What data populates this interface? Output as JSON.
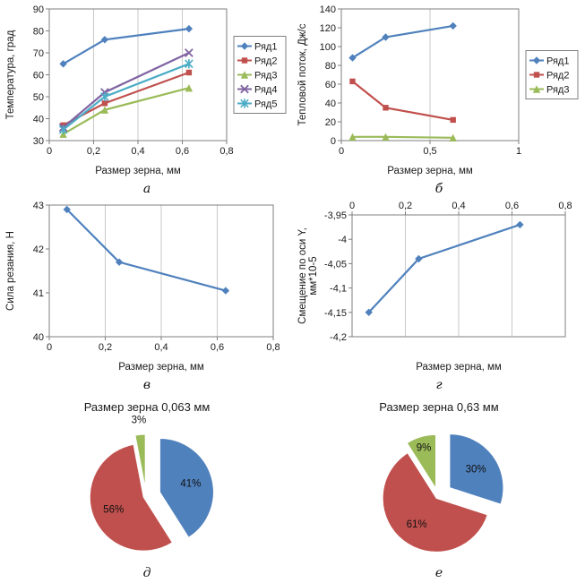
{
  "panels": [
    {
      "id": "a",
      "letter": "а"
    },
    {
      "id": "b",
      "letter": "б"
    },
    {
      "id": "v",
      "letter": "в"
    },
    {
      "id": "g",
      "letter": "г"
    },
    {
      "id": "d",
      "letter": "д",
      "title": "Размер зерна 0,063 мм"
    },
    {
      "id": "e",
      "letter": "е",
      "title": "Размер зерна 0,63 мм"
    }
  ],
  "colors": {
    "series1_blue": "#4F81BD",
    "series2_red": "#C0504D",
    "series3_green": "#9BBB59",
    "series4_purple": "#8064A2",
    "series5_cyan": "#4BACC6",
    "gridline": "#c9c9c9",
    "plot_border": "#7f7f7f",
    "text": "#1a1a1a"
  },
  "chart_data": [
    {
      "id": "a",
      "type": "line",
      "ylabel": "Температура, град",
      "xlabel": "Размер зерна, мм",
      "x": [
        0.063,
        0.25,
        0.63
      ],
      "xlim": [
        0,
        0.8
      ],
      "ylim": [
        30,
        90
      ],
      "grid": "vertical",
      "legend": true,
      "legend_position": "right",
      "xticks": [
        {
          "v": 0,
          "label": "0"
        },
        {
          "v": 0.2,
          "label": "0,2"
        },
        {
          "v": 0.4,
          "label": "0,4"
        },
        {
          "v": 0.6,
          "label": "0,6"
        },
        {
          "v": 0.8,
          "label": "0,8"
        }
      ],
      "yticks": [
        {
          "v": 30,
          "label": "30"
        },
        {
          "v": 40,
          "label": "40"
        },
        {
          "v": 50,
          "label": "50"
        },
        {
          "v": 60,
          "label": "60"
        },
        {
          "v": 70,
          "label": "70"
        },
        {
          "v": 80,
          "label": "80"
        },
        {
          "v": 90,
          "label": "90"
        }
      ],
      "series": [
        {
          "name": "Ряд1",
          "color": "#4F81BD",
          "marker": "diamond",
          "values": [
            65,
            76,
            81
          ]
        },
        {
          "name": "Ряд2",
          "color": "#C0504D",
          "marker": "square",
          "values": [
            37,
            47,
            61
          ]
        },
        {
          "name": "Ряд3",
          "color": "#9BBB59",
          "marker": "triangle",
          "values": [
            33,
            44,
            54
          ]
        },
        {
          "name": "Ряд4",
          "color": "#8064A2",
          "marker": "x",
          "values": [
            36,
            52,
            70
          ]
        },
        {
          "name": "Ряд5",
          "color": "#4BACC6",
          "marker": "star",
          "values": [
            35,
            50,
            65
          ]
        }
      ]
    },
    {
      "id": "b",
      "type": "line",
      "ylabel": "Тепловой поток, Дж/с",
      "xlabel": "Размер зерна, мм",
      "x": [
        0.063,
        0.25,
        0.63
      ],
      "xlim": [
        0,
        1
      ],
      "ylim": [
        0,
        140
      ],
      "grid": "vertical",
      "legend": true,
      "legend_position": "right",
      "xticks": [
        {
          "v": 0,
          "label": "0"
        },
        {
          "v": 0.5,
          "label": "0,5"
        },
        {
          "v": 1,
          "label": "1"
        }
      ],
      "yticks": [
        {
          "v": 0,
          "label": "0"
        },
        {
          "v": 20,
          "label": "20"
        },
        {
          "v": 40,
          "label": "40"
        },
        {
          "v": 60,
          "label": "60"
        },
        {
          "v": 80,
          "label": "80"
        },
        {
          "v": 100,
          "label": "100"
        },
        {
          "v": 120,
          "label": "120"
        },
        {
          "v": 140,
          "label": "140"
        }
      ],
      "series": [
        {
          "name": "Ряд1",
          "color": "#4F81BD",
          "marker": "diamond",
          "values": [
            88,
            110,
            122
          ]
        },
        {
          "name": "Ряд2",
          "color": "#C0504D",
          "marker": "square",
          "values": [
            63,
            35,
            22
          ]
        },
        {
          "name": "Ряд3",
          "color": "#9BBB59",
          "marker": "triangle",
          "values": [
            4,
            4,
            3
          ]
        }
      ]
    },
    {
      "id": "v",
      "type": "line",
      "ylabel": "Сила резания, Н",
      "xlabel": "Размер зерна, мм",
      "x": [
        0.063,
        0.25,
        0.63
      ],
      "xlim": [
        0,
        0.8
      ],
      "ylim": [
        40,
        43
      ],
      "grid": "vertical",
      "legend": false,
      "xticks": [
        {
          "v": 0,
          "label": "0"
        },
        {
          "v": 0.2,
          "label": "0,2"
        },
        {
          "v": 0.4,
          "label": "0,4"
        },
        {
          "v": 0.6,
          "label": "0,6"
        },
        {
          "v": 0.8,
          "label": "0,8"
        }
      ],
      "yticks": [
        {
          "v": 40,
          "label": "40"
        },
        {
          "v": 41,
          "label": "41"
        },
        {
          "v": 42,
          "label": "42"
        },
        {
          "v": 43,
          "label": "43"
        }
      ],
      "series": [
        {
          "name": "Ряд1",
          "color": "#4F81BD",
          "marker": "diamond",
          "values": [
            42.9,
            41.7,
            41.05
          ]
        }
      ]
    },
    {
      "id": "g",
      "type": "line",
      "ylabel": [
        "Смещение по оси Y,",
        "мм*10-5"
      ],
      "xlabel": "Размер зерна, мм",
      "x": [
        0.063,
        0.25,
        0.63
      ],
      "xlim": [
        0,
        0.8
      ],
      "ylim": [
        -4.2,
        -3.95
      ],
      "x_axis": "top",
      "grid": "vertical",
      "legend": false,
      "xticks": [
        {
          "v": 0,
          "label": "0"
        },
        {
          "v": 0.2,
          "label": "0,2"
        },
        {
          "v": 0.4,
          "label": "0,4"
        },
        {
          "v": 0.6,
          "label": "0,6"
        },
        {
          "v": 0.8,
          "label": "0,8"
        }
      ],
      "yticks": [
        {
          "v": -3.95,
          "label": "-3,95"
        },
        {
          "v": -4,
          "label": "-4"
        },
        {
          "v": -4.05,
          "label": "-4,05"
        },
        {
          "v": -4.1,
          "label": "-4,1"
        },
        {
          "v": -4.15,
          "label": "-4,15"
        },
        {
          "v": -4.2,
          "label": "-4,2"
        }
      ],
      "series": [
        {
          "name": "Ряд1",
          "color": "#4F81BD",
          "marker": "diamond",
          "values": [
            -4.15,
            -4.04,
            -3.97
          ]
        }
      ]
    },
    {
      "id": "d",
      "type": "pie",
      "title": "Размер зерна 0,063 мм",
      "start_angle": "top",
      "direction": "clockwise",
      "slices": [
        {
          "label": "41%",
          "value": 41,
          "color": "#4F81BD",
          "explode": 16
        },
        {
          "label": "56%",
          "value": 56,
          "color": "#C0504D",
          "explode": 3
        },
        {
          "label": "3%",
          "value": 3,
          "color": "#9BBB59",
          "explode": 9
        }
      ]
    },
    {
      "id": "e",
      "type": "pie",
      "title": "Размер зерна 0,63 мм",
      "start_angle": "top",
      "direction": "clockwise",
      "slices": [
        {
          "label": "30%",
          "value": 30,
          "color": "#4F81BD",
          "explode": 16
        },
        {
          "label": "61%",
          "value": 61,
          "color": "#C0504D",
          "explode": 3
        },
        {
          "label": "9%",
          "value": 9,
          "color": "#9BBB59",
          "explode": 9
        }
      ]
    }
  ]
}
